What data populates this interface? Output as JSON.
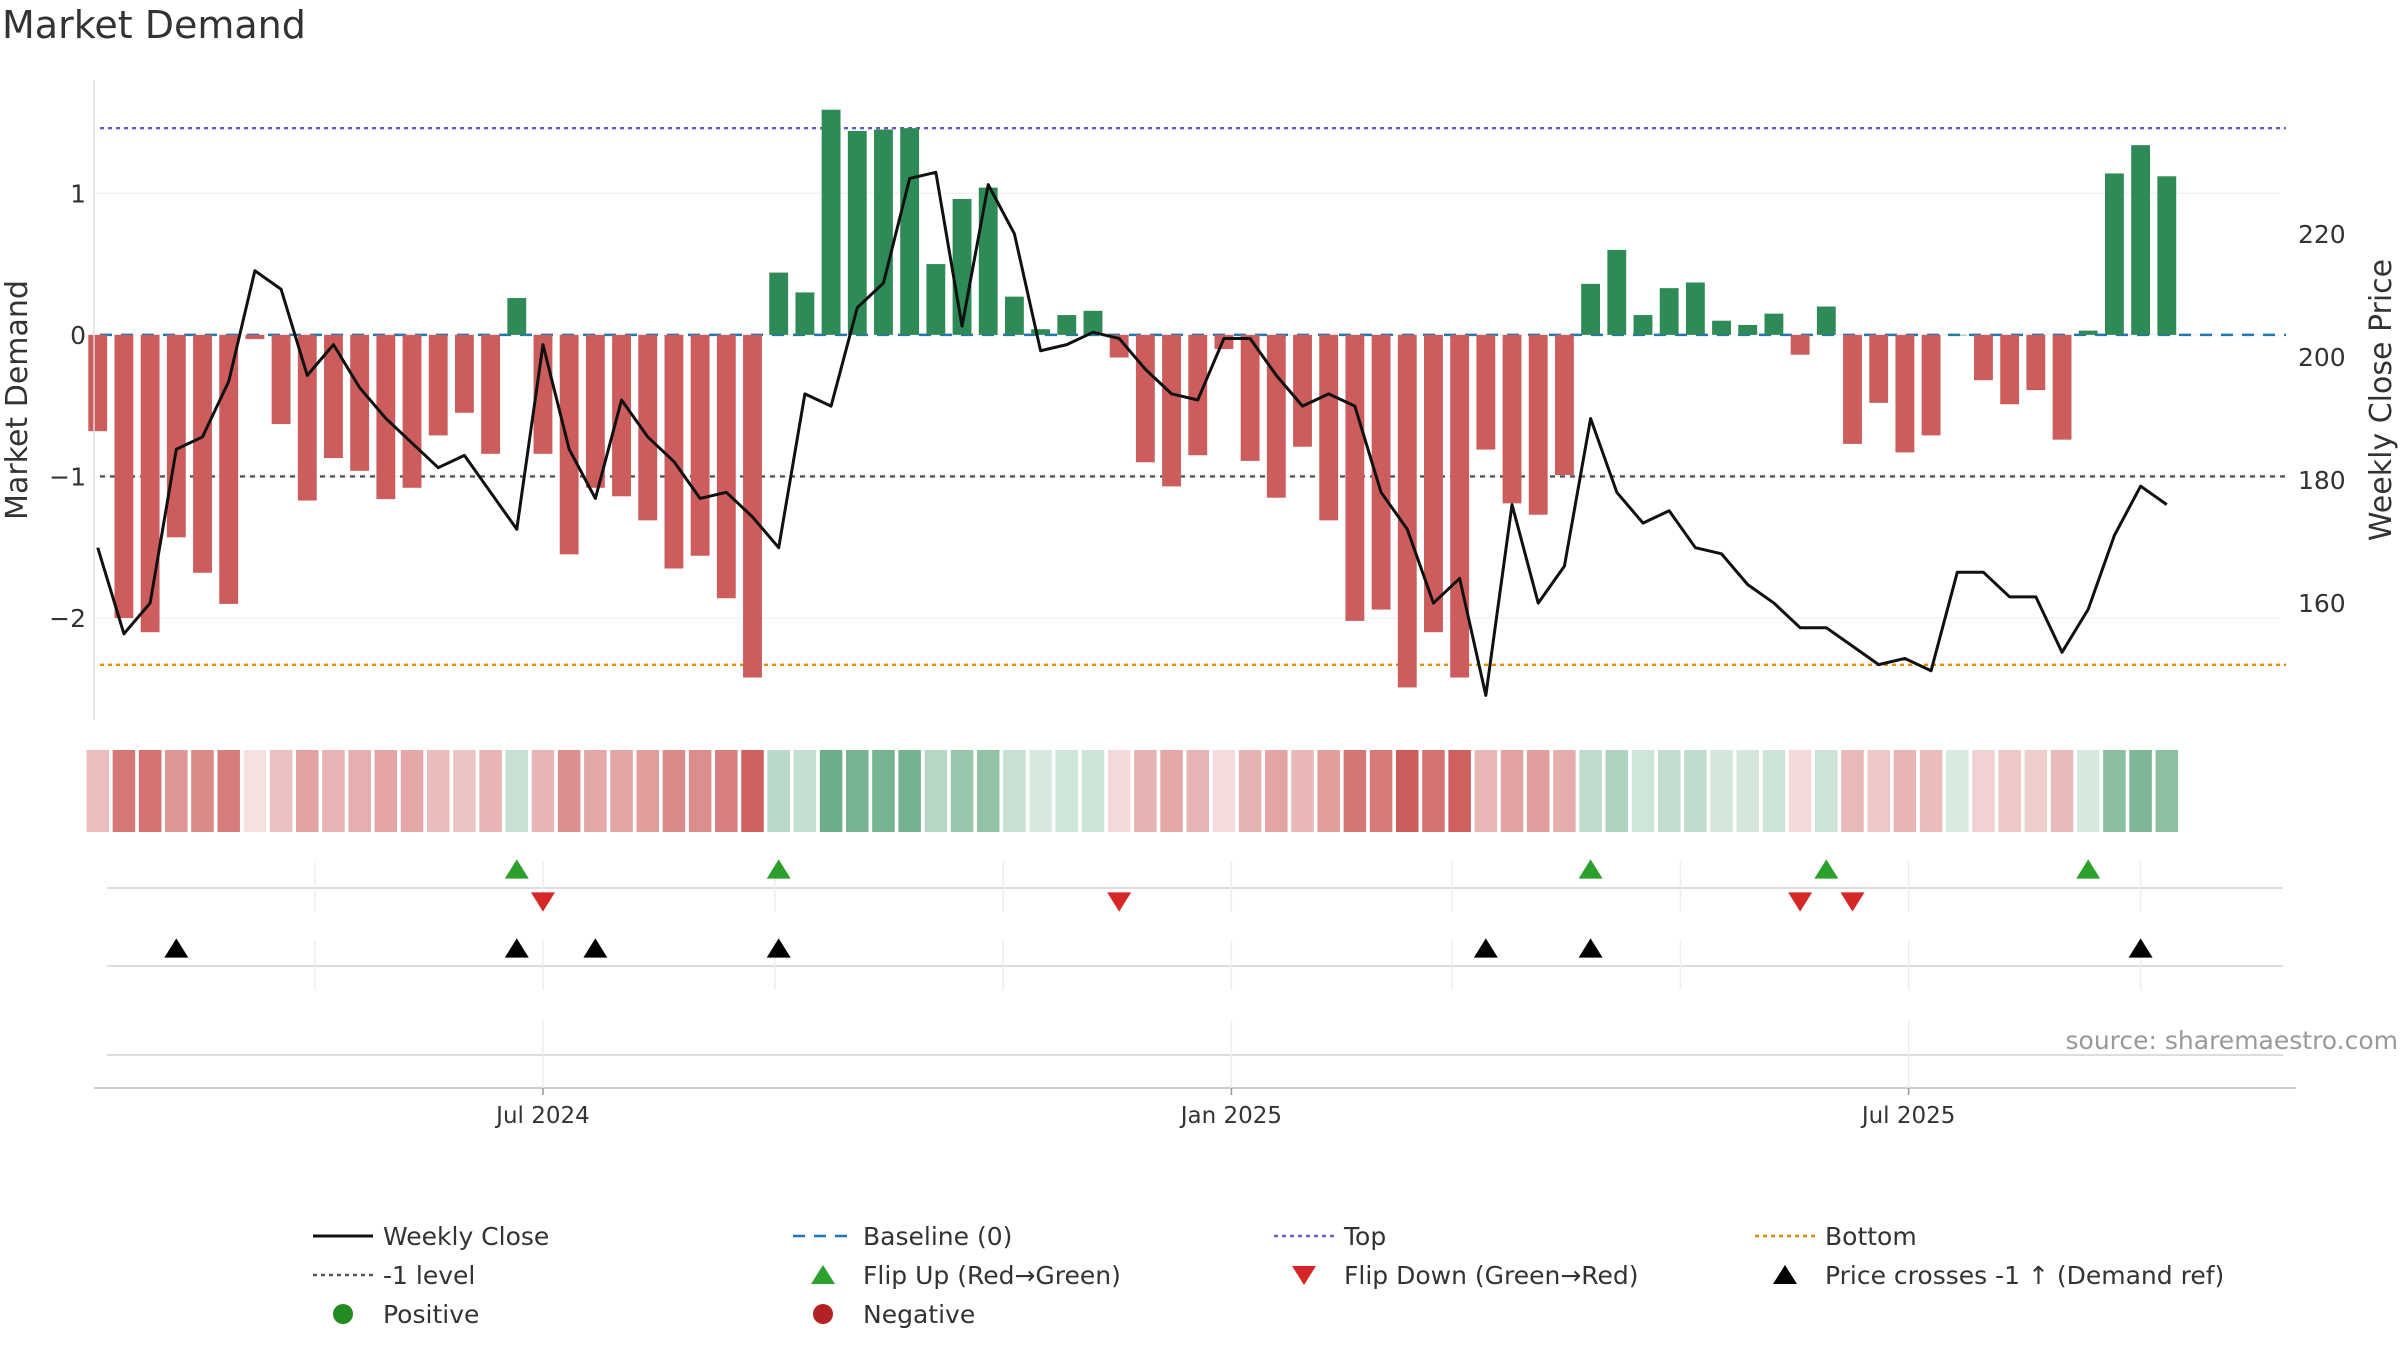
{
  "chart_data": {
    "type": "bar",
    "title": "Market Demand",
    "ylabel": "Market Demand",
    "y2label": "Weekly Close Price",
    "source": "source: sharemaestro.com",
    "ylim": [
      -2.72,
      1.8
    ],
    "y2lim": [
      141,
      245
    ],
    "yticks": [
      1,
      0,
      -1,
      -2
    ],
    "ytick_labels": [
      "1",
      "0",
      "−1",
      "−2"
    ],
    "y2ticks": [
      220,
      200,
      180,
      160
    ],
    "y2tick_labels": [
      "220",
      "200",
      "180",
      "160"
    ],
    "xlim": [
      "2024-03-03",
      "2025-10-12"
    ],
    "xticks": [
      {
        "date": "2024-07-01",
        "label": "Jul 2024"
      },
      {
        "date": "2025-01-01",
        "label": "Jan 2025"
      },
      {
        "date": "2025-07-01",
        "label": "Jul 2025"
      }
    ],
    "levels": {
      "top": 1.46,
      "bottom": -2.33,
      "minus_one": -1,
      "baseline": 0
    },
    "start_week": "2024-03-04",
    "demand": [
      -0.68,
      -2.0,
      -2.1,
      -1.43,
      -1.68,
      -1.9,
      -0.03,
      -0.63,
      -1.17,
      -0.87,
      -0.96,
      -1.16,
      -1.08,
      -0.71,
      -0.55,
      -0.84,
      0.26,
      -0.84,
      -1.55,
      -1.08,
      -1.14,
      -1.31,
      -1.65,
      -1.56,
      -1.86,
      -2.42,
      0.44,
      0.3,
      1.59,
      1.44,
      1.45,
      1.46,
      0.5,
      0.96,
      1.04,
      0.27,
      0.04,
      0.14,
      0.17,
      -0.16,
      -0.9,
      -1.07,
      -0.85,
      -0.1,
      -0.89,
      -1.15,
      -0.79,
      -1.31,
      -2.02,
      -1.94,
      -2.49,
      -2.1,
      -2.42,
      -0.81,
      -1.19,
      -1.27,
      -0.99,
      0.36,
      0.6,
      0.14,
      0.33,
      0.37,
      0.1,
      0.07,
      0.15,
      -0.14,
      0.2,
      -0.77,
      -0.48,
      -0.83,
      -0.71,
      0,
      -0.32,
      -0.49,
      -0.39,
      -0.74,
      0.03,
      1.14,
      1.34,
      1.12
    ],
    "close": [
      169,
      155,
      160,
      185,
      187,
      196,
      214,
      211,
      197,
      202,
      195,
      190,
      186,
      182,
      184,
      178,
      172,
      202,
      185,
      177,
      193,
      187,
      183,
      177,
      178,
      174,
      169,
      194,
      192,
      208,
      212,
      229,
      230,
      205,
      228,
      220,
      201,
      202,
      204,
      203,
      198,
      194,
      193,
      203,
      203,
      197,
      192,
      194,
      192,
      178,
      172,
      160,
      164,
      145,
      176,
      160,
      166,
      190,
      178,
      173,
      175,
      169,
      168,
      163,
      160,
      156,
      156,
      153,
      150,
      151,
      149,
      165,
      165,
      161,
      161,
      152,
      159,
      171,
      179,
      176
    ],
    "flip_up_weeks": [
      16,
      26,
      57,
      66,
      76
    ],
    "flip_down_weeks": [
      17,
      39,
      65,
      67
    ],
    "price_cross_weeks": [
      3,
      16,
      19,
      26,
      53,
      57,
      78
    ],
    "legend": [
      {
        "label": "Weekly Close",
        "marker": "solid-line",
        "color": "#111111"
      },
      {
        "label": "Baseline (0)",
        "marker": "dashed-line",
        "color": "#1f77b4"
      },
      {
        "label": "Top",
        "marker": "dotted-line",
        "color": "#6a5acd"
      },
      {
        "label": "Bottom",
        "marker": "dotted-line",
        "color": "#e08a00"
      },
      {
        "label": "-1 level",
        "marker": "dotted-line",
        "color": "#555555"
      },
      {
        "label": "Flip Up (Red→Green)",
        "marker": "triangle-up",
        "color": "#2ca02c"
      },
      {
        "label": "Flip Down (Green→Red)",
        "marker": "triangle-down",
        "color": "#d62728"
      },
      {
        "label": "Price crosses -1 ↑ (Demand ref)",
        "marker": "triangle-up",
        "color": "#000000"
      },
      {
        "label": "Positive",
        "marker": "circle",
        "color": "#228b22"
      },
      {
        "label": "Negative",
        "marker": "circle",
        "color": "#b22222"
      }
    ],
    "colors": {
      "positive": "#2e8b57",
      "negative": "#cd5c5c",
      "close": "#111111"
    }
  }
}
